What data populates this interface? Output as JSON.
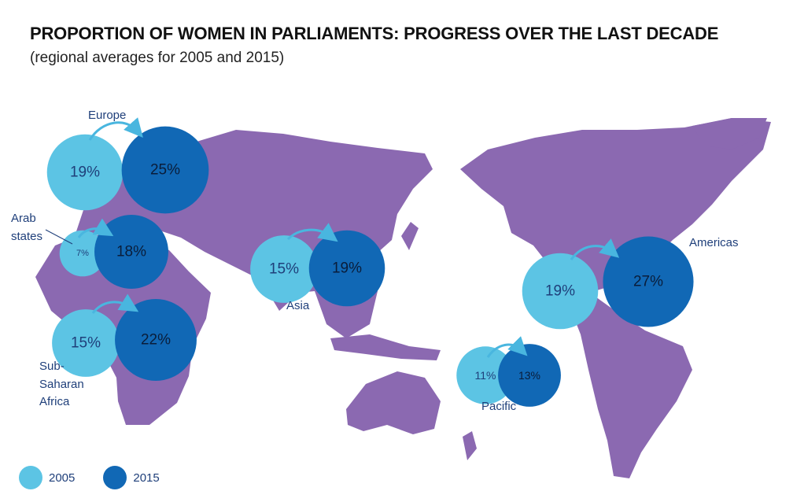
{
  "title": "PROPORTION OF WOMEN IN PARLIAMENTS: PROGRESS OVER THE LAST DECADE",
  "subtitle": "(regional averages for 2005 and 2015)",
  "colors": {
    "land": "#8b69b1",
    "c2005": "#5cc4e4",
    "c2015": "#1168b5",
    "arrow": "#49b6df"
  },
  "legend": [
    {
      "label": "2005",
      "color": "#5cc4e4"
    },
    {
      "label": "2015",
      "color": "#1168b5"
    }
  ],
  "chart_data": {
    "type": "bubble-map",
    "categories": [
      "Europe",
      "Arab states",
      "Sub-Saharan Africa",
      "Asia",
      "Pacific",
      "Americas"
    ],
    "series": [
      {
        "name": "2005",
        "values": [
          19,
          7,
          15,
          15,
          11,
          19
        ]
      },
      {
        "name": "2015",
        "values": [
          25,
          18,
          22,
          19,
          13,
          27
        ]
      }
    ],
    "value_labels_2005": [
      "19%",
      "7%",
      "15%",
      "15%",
      "11%",
      "19%"
    ],
    "value_labels_2015": [
      "25%",
      "18%",
      "22%",
      "19%",
      "13%",
      "27%"
    ],
    "region_labels": [
      "Europe",
      "Arab states",
      "Sub-Saharan Africa",
      "Asia",
      "Pacific",
      "Americas"
    ]
  }
}
